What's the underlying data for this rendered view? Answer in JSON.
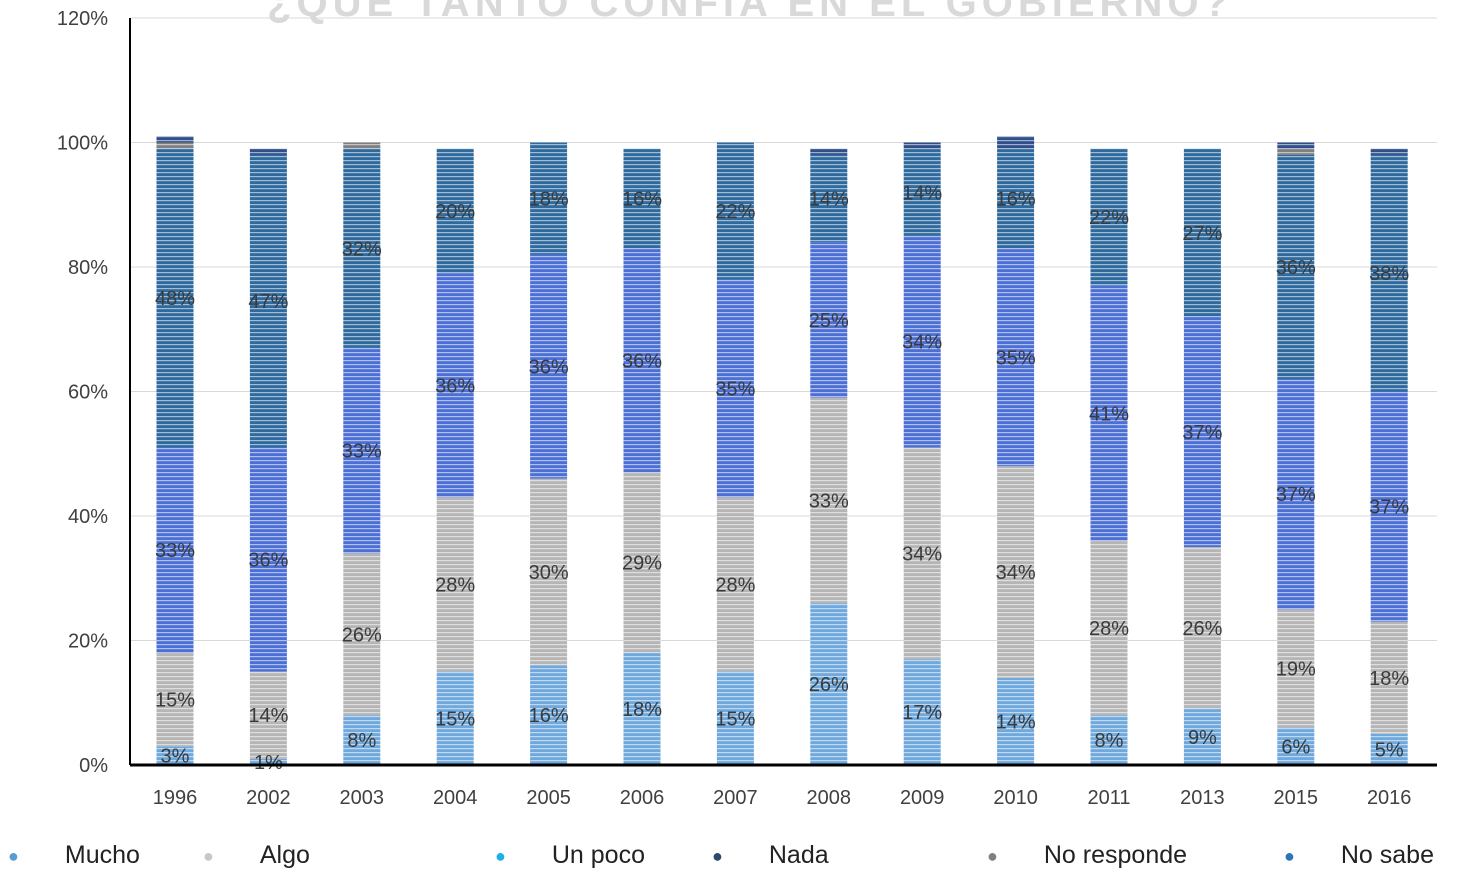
{
  "chart_data": {
    "type": "bar",
    "stacked": true,
    "title": "¿QUÉ TANTO CONFÍA EN EL GOBIERNO?",
    "categories": [
      "1996",
      "2002",
      "2003",
      "2004",
      "2005",
      "2006",
      "2007",
      "2008",
      "2009",
      "2010",
      "2011",
      "2013",
      "2015",
      "2016"
    ],
    "ylim": [
      0,
      120
    ],
    "yticks": [
      "0%",
      "20%",
      "40%",
      "60%",
      "80%",
      "100%",
      "120%"
    ],
    "grid": true,
    "legend_position": "bottom",
    "series": [
      {
        "name": "Mucho",
        "color": "#6fa8dc",
        "values": [
          3,
          1,
          8,
          15,
          16,
          18,
          15,
          26,
          17,
          14,
          8,
          9,
          6,
          5
        ]
      },
      {
        "name": "Algo",
        "color": "#b5b5b5",
        "values": [
          15,
          14,
          26,
          28,
          30,
          29,
          28,
          33,
          34,
          34,
          28,
          26,
          19,
          18
        ]
      },
      {
        "name": "Un poco",
        "color": "#4c6fd6",
        "values": [
          33,
          36,
          33,
          36,
          36,
          36,
          35,
          25,
          34,
          35,
          41,
          37,
          37,
          37
        ]
      },
      {
        "name": "Nada",
        "color": "#2e6a9e",
        "values": [
          48,
          47,
          32,
          20,
          18,
          16,
          22,
          14,
          14,
          16,
          22,
          27,
          36,
          38
        ]
      },
      {
        "name": "No responde",
        "color": "#7f7f7f",
        "values": [
          1,
          0,
          1,
          0,
          0,
          0,
          0,
          0,
          0,
          0,
          0,
          0,
          1,
          0
        ]
      },
      {
        "name": "No sabe",
        "color": "#2f4f8a",
        "values": [
          1,
          1,
          0,
          0,
          0,
          0,
          0,
          1,
          1,
          2,
          0,
          0,
          1,
          1
        ]
      }
    ],
    "data_labels": [
      [
        "3%",
        "1%",
        "8%",
        "15%",
        "16%",
        "18%",
        "15%",
        "26%",
        "17%",
        "14%",
        "8%",
        "9%",
        "6%",
        "5%"
      ],
      [
        "15%",
        "14%",
        "26%",
        "28%",
        "30%",
        "29%",
        "28%",
        "33%",
        "34%",
        "34%",
        "28%",
        "26%",
        "19%",
        "18%"
      ],
      [
        "33%",
        "36%",
        "33%",
        "36%",
        "36%",
        "36%",
        "35%",
        "25%",
        "34%",
        "35%",
        "41%",
        "37%",
        "37%",
        "37%"
      ],
      [
        "48%",
        "47%",
        "32%",
        "20%",
        "18%",
        "16%",
        "22%",
        "14%",
        "14%",
        "16%",
        "22%",
        "27%",
        "36%",
        "38%"
      ]
    ]
  },
  "legend": [
    {
      "label": "Mucho",
      "dot_color": "#5b9bd5"
    },
    {
      "label": "Algo",
      "dot_color": "#c8c8c8"
    },
    {
      "label": "Un poco",
      "dot_color": "#1ab0e8"
    },
    {
      "label": "Nada",
      "dot_color": "#2f4870"
    },
    {
      "label": "No responde",
      "dot_color": "#808080"
    },
    {
      "label": "No sabe",
      "dot_color": "#2e75b6"
    }
  ]
}
